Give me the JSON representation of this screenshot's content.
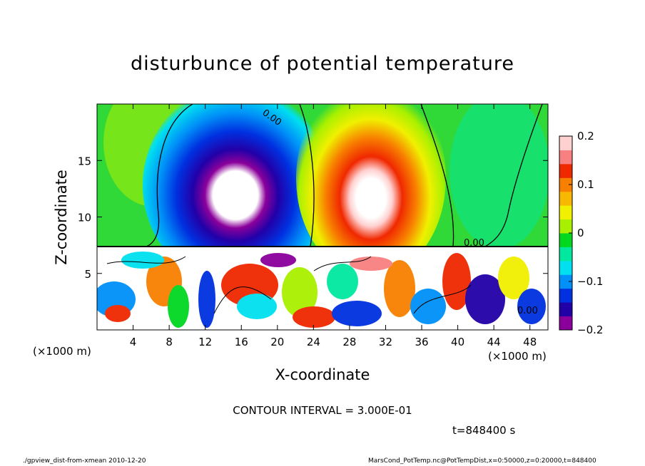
{
  "chart_data": {
    "type": "heatmap",
    "title": "disturbunce of potential temperature",
    "xlabel": "X-coordinate",
    "ylabel": "Z-coordinate",
    "x_unit": "(×1000 m)",
    "x_unit_left": "(×1000 m)",
    "xlim": [
      0,
      50
    ],
    "ylim": [
      0,
      20
    ],
    "x_ticks": [
      4,
      8,
      12,
      16,
      20,
      24,
      28,
      32,
      36,
      40,
      44,
      48
    ],
    "y_ticks": [
      5,
      10,
      15
    ],
    "colorbar": {
      "min": -0.2,
      "max": 0.2,
      "ticks": [
        -0.2,
        -0.1,
        0,
        0.1,
        0.2
      ],
      "tick_labels": [
        "−0.2",
        "−0.1",
        "0",
        "0.1",
        "0.2"
      ],
      "colors": [
        "#8b009b",
        "#2200a8",
        "#0030e0",
        "#0090f8",
        "#00e0f0",
        "#00e8a0",
        "#00d820",
        "#a8f000",
        "#f0f000",
        "#f8b800",
        "#f88000",
        "#f02800",
        "#f88080",
        "#ffd0d0"
      ]
    },
    "contour_interval": "CONTOUR INTERVAL = 3.000E-01",
    "contour_labels": [
      "0.00"
    ],
    "time_label": "t=848400 s"
  },
  "footer": {
    "left": "./gpview_dist-from-xmean  2010-12-20",
    "right": "MarsCond_PotTemp.nc@PotTempDist,x=0:50000,z=0:20000,t=848400"
  }
}
